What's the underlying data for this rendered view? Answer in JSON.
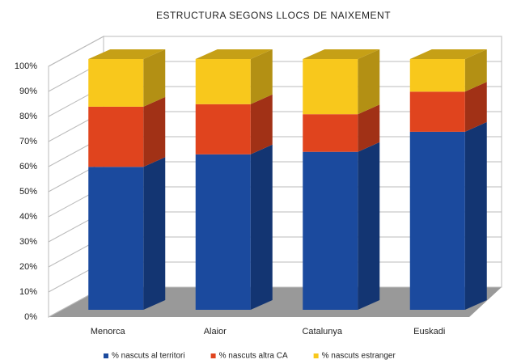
{
  "chart_data": {
    "type": "bar",
    "stacked": true,
    "title": "ESTRUCTURA SEGONS LLOCS DE NAIXEMENT",
    "categories": [
      "Menorca",
      "Alaior",
      "Catalunya",
      "Euskadi"
    ],
    "series": [
      {
        "name": "% nascuts al territori",
        "color": "#1b4a9e",
        "values": [
          57,
          62,
          63,
          71
        ]
      },
      {
        "name": "% nascuts altra CA",
        "color": "#e0441e",
        "values": [
          24,
          20,
          15,
          16
        ]
      },
      {
        "name": "% nascuts estranger",
        "color": "#f8c81c",
        "values": [
          19,
          18,
          22,
          13
        ]
      }
    ],
    "ylim": [
      0,
      100
    ],
    "yticks": [
      {
        "value": 0,
        "label": "0%"
      },
      {
        "value": 10,
        "label": "10%"
      },
      {
        "value": 20,
        "label": "20%"
      },
      {
        "value": 30,
        "label": "30%"
      },
      {
        "value": 40,
        "label": "40%"
      },
      {
        "value": 50,
        "label": "50%"
      },
      {
        "value": 60,
        "label": "60%"
      },
      {
        "value": 70,
        "label": "70%"
      },
      {
        "value": 80,
        "label": "80%"
      },
      {
        "value": 90,
        "label": "90%"
      },
      {
        "value": 100,
        "label": "100%"
      }
    ],
    "grid": true,
    "legend": "bottom"
  }
}
